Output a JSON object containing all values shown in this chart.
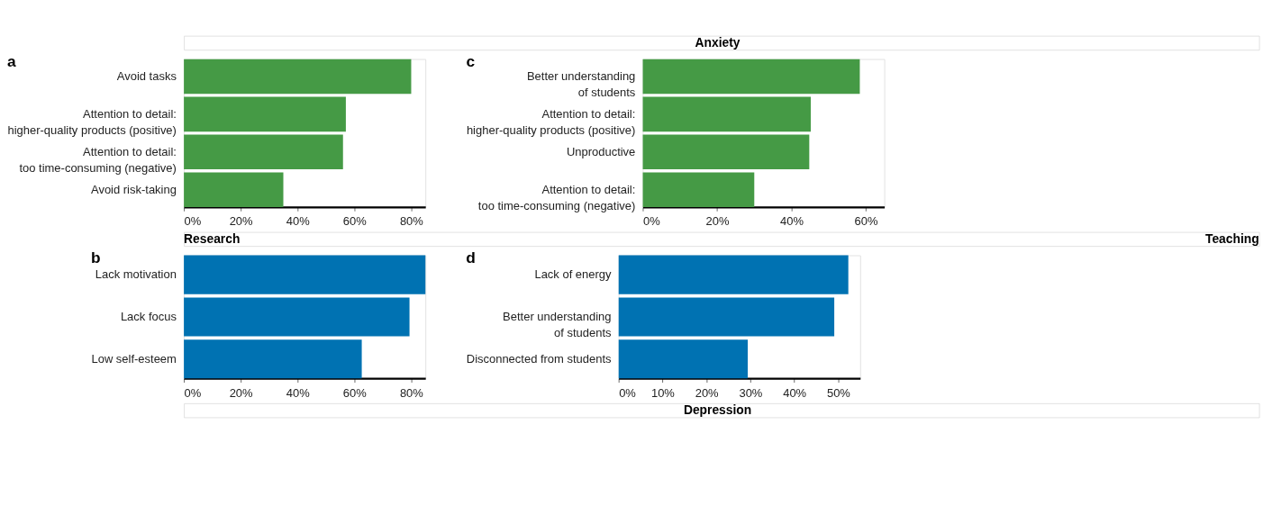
{
  "chart_data": [
    {
      "type": "bar",
      "orientation": "horizontal",
      "title": "a",
      "annotations": [
        "Anxiety"
      ],
      "categories": [
        "Avoid tasks",
        "Attention to detail:\nhigher-quality products (positive)",
        "Attention to detail:\ntoo time-consuming (negative)",
        "Avoid risk-taking"
      ],
      "values": [
        80,
        57,
        56,
        35
      ],
      "color": "#459a45",
      "xlim": [
        0,
        85
      ],
      "xticks": [
        {
          "value": 0,
          "label": "0%"
        },
        {
          "value": 20,
          "label": "20%"
        },
        {
          "value": 40,
          "label": "40%"
        },
        {
          "value": 60,
          "label": "60%"
        },
        {
          "value": 80,
          "label": "80%"
        }
      ]
    },
    {
      "type": "bar",
      "orientation": "horizontal",
      "title": "b",
      "annotations": [
        "Research"
      ],
      "categories": [
        "Lack motivation",
        "Lack focus",
        "Low self-esteem"
      ],
      "values": [
        85,
        79.4,
        62.6
      ],
      "color": "#0072b2",
      "xlim": [
        0,
        85
      ],
      "xticks": [
        {
          "value": 0,
          "label": "0%"
        },
        {
          "value": 20,
          "label": "20%"
        },
        {
          "value": 40,
          "label": "40%"
        },
        {
          "value": 60,
          "label": "60%"
        },
        {
          "value": 80,
          "label": "80%"
        }
      ]
    },
    {
      "type": "bar",
      "orientation": "horizontal",
      "title": "c",
      "annotations": [
        "Teaching"
      ],
      "categories": [
        "Better understanding\nof students",
        "Attention to detail:\nhigher-quality products (positive)",
        "Unproductive",
        "Attention to detail:\ntoo time-consuming (negative)"
      ],
      "values": [
        58.4,
        45.2,
        44.8,
        30
      ],
      "color": "#459a45",
      "xlim": [
        0,
        65
      ],
      "xticks": [
        {
          "value": 0,
          "label": "0%"
        },
        {
          "value": 20,
          "label": "20%"
        },
        {
          "value": 40,
          "label": "40%"
        },
        {
          "value": 60,
          "label": "60%"
        }
      ]
    },
    {
      "type": "bar",
      "orientation": "horizontal",
      "title": "d",
      "annotations": [
        "Depression"
      ],
      "categories": [
        "Lack of energy",
        "Better understanding\nof students",
        "Disconnected from students"
      ],
      "values": [
        52.3,
        49.1,
        29.4
      ],
      "color": "#0072b2",
      "xlim": [
        0,
        55
      ],
      "xticks": [
        {
          "value": 0,
          "label": "0%"
        },
        {
          "value": 10,
          "label": "10%"
        },
        {
          "value": 20,
          "label": "20%"
        },
        {
          "value": 30,
          "label": "30%"
        },
        {
          "value": 40,
          "label": "40%"
        },
        {
          "value": 50,
          "label": "50%"
        }
      ]
    }
  ]
}
